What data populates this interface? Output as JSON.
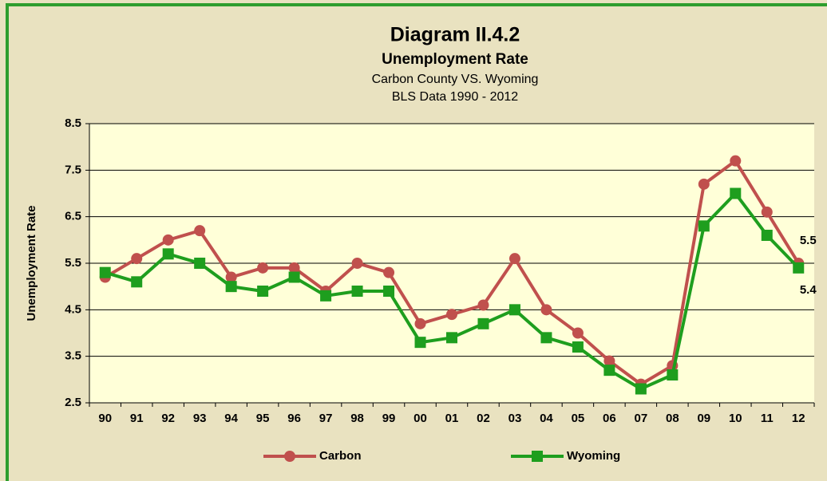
{
  "chart_data": {
    "type": "line",
    "title": "Diagram II.4.2",
    "subtitle": [
      "Unemployment Rate",
      "Carbon County VS. Wyoming",
      "BLS Data 1990 -  2012"
    ],
    "y_label": "Unemployment Rate",
    "categories": [
      "90",
      "91",
      "92",
      "93",
      "94",
      "95",
      "96",
      "97",
      "98",
      "99",
      "00",
      "01",
      "02",
      "03",
      "04",
      "05",
      "06",
      "07",
      "08",
      "09",
      "10",
      "11",
      "12"
    ],
    "series": [
      {
        "name": "Carbon",
        "color": "#c0504d",
        "marker": "circle",
        "values": [
          5.2,
          5.6,
          6.0,
          6.2,
          5.2,
          5.4,
          5.4,
          4.9,
          5.5,
          5.3,
          4.2,
          4.4,
          4.6,
          5.6,
          4.5,
          4.0,
          3.4,
          2.9,
          3.3,
          7.2,
          7.7,
          6.6,
          5.5
        ]
      },
      {
        "name": "Wyoming",
        "color": "#1e9e1e",
        "marker": "square",
        "values": [
          5.3,
          5.1,
          5.7,
          5.5,
          5.0,
          4.9,
          5.2,
          4.8,
          4.9,
          4.9,
          3.8,
          3.9,
          4.2,
          4.5,
          3.9,
          3.7,
          3.2,
          2.8,
          3.1,
          6.3,
          7.0,
          6.1,
          5.4
        ]
      }
    ],
    "ylim": [
      2.5,
      8.5
    ],
    "yticks": [
      2.5,
      3.5,
      4.5,
      5.5,
      6.5,
      7.5,
      8.5
    ],
    "grid": true,
    "legend": "bottom"
  }
}
